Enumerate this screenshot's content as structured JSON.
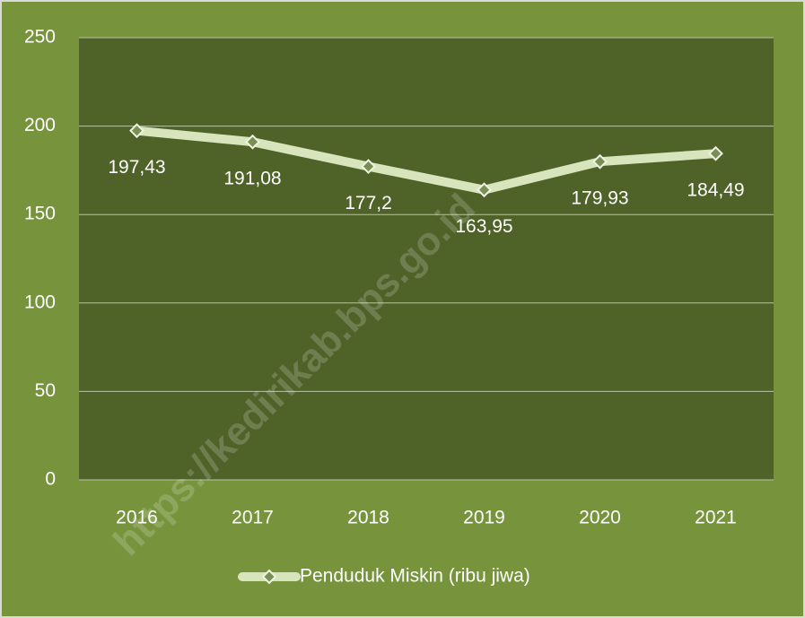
{
  "chart_data": {
    "type": "line",
    "categories": [
      "2016",
      "2017",
      "2018",
      "2019",
      "2020",
      "2021"
    ],
    "series": [
      {
        "name": "Penduduk Miskin (ribu jiwa)",
        "color": "#d7e4bc",
        "values": [
          197.43,
          191.08,
          177.2,
          163.95,
          179.93,
          184.49
        ],
        "value_labels": [
          "197,43",
          "191,08",
          "177,2",
          "163,95",
          "179,93",
          "184,49"
        ]
      }
    ],
    "ylim": [
      0,
      250
    ],
    "yticks": [
      0,
      50,
      100,
      150,
      200,
      250
    ],
    "grid": true,
    "legend": "bottom",
    "watermark": "https://kedirikab.bps.go.id"
  }
}
